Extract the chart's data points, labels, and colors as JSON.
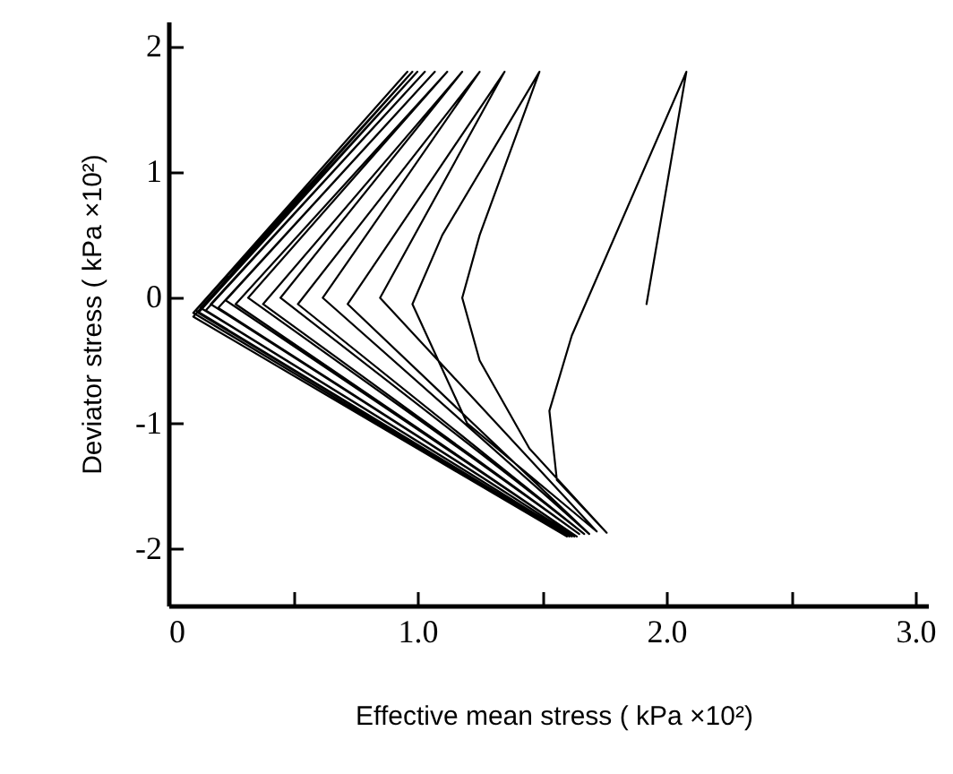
{
  "chart_data": {
    "type": "line",
    "xlabel": "Effective mean stress    ( kPa ×10²)",
    "ylabel": "Deviator stress ( kPa ×10²)",
    "x": [
      1.92,
      2.08,
      1.62,
      1.53,
      1.56,
      1.76,
      1.45,
      1.25,
      1.18,
      1.25,
      1.49,
      1.1,
      0.98,
      1.2,
      1.72,
      0.85,
      1.35,
      0.72,
      1.69,
      0.62,
      1.25,
      0.52,
      1.67,
      0.45,
      1.18,
      0.38,
      1.65,
      0.32,
      1.12,
      0.27,
      1.64,
      0.23,
      1.07,
      0.2,
      1.63,
      0.17,
      1.03,
      0.15,
      1.62,
      0.13,
      1.0,
      0.12,
      1.61,
      0.11,
      0.98,
      0.1,
      1.6,
      0.1,
      0.96
    ],
    "series": [
      {
        "color": "#000000",
        "values": [
          -0.05,
          1.8,
          -0.3,
          -0.9,
          -1.45,
          -1.87,
          -1.2,
          -0.5,
          0,
          0.5,
          1.8,
          0.5,
          -0.05,
          -1.0,
          -1.86,
          0,
          1.8,
          -0.05,
          -1.88,
          0,
          1.8,
          -0.05,
          -1.88,
          0,
          1.8,
          -0.05,
          -1.88,
          0,
          1.8,
          -0.05,
          -1.9,
          -0.02,
          1.8,
          -0.08,
          -1.9,
          -0.05,
          1.8,
          -0.1,
          -1.9,
          -0.08,
          1.8,
          -0.12,
          -1.9,
          -0.1,
          1.8,
          -0.15,
          -1.9,
          -0.12,
          1.8
        ]
      }
    ],
    "xlim": [
      0,
      3.05
    ],
    "xticks": [
      0,
      {
        "value": 0.5,
        "label": null
      },
      {
        "value": 1,
        "label": "1.0"
      },
      {
        "value": 1.5,
        "label": null
      },
      {
        "value": 2,
        "label": "2.0"
      },
      {
        "value": 2.5,
        "label": null
      },
      {
        "value": 3,
        "label": "3.0"
      }
    ],
    "ylim": [
      -2.45,
      2.2
    ],
    "yticks": [
      -2,
      -1,
      0,
      1,
      2
    ],
    "grid": false,
    "marker": "none",
    "line_style": "solid"
  }
}
